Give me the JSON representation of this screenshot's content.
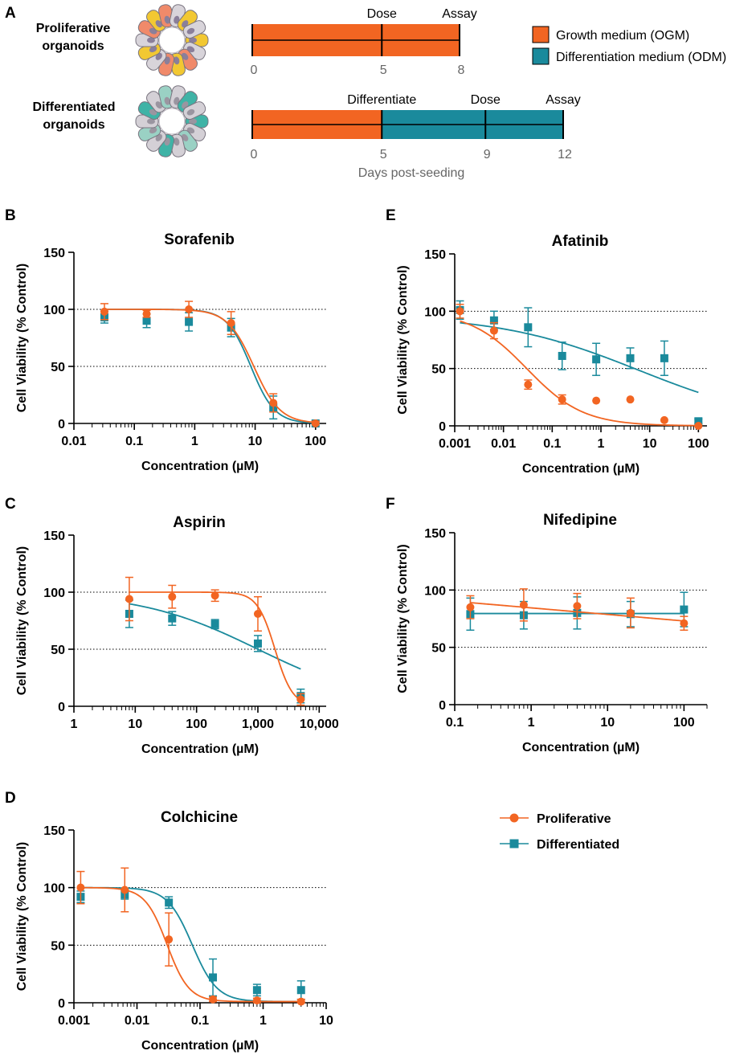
{
  "colors": {
    "proliferative": "#f26522",
    "differentiated": "#1a8a9c",
    "axis": "#000000",
    "timeline_text": "#666666"
  },
  "panel_a": {
    "letter": "A",
    "rows": [
      {
        "label_line1": "Proliferative",
        "label_line2": "organoids",
        "marker_labels": [
          "Dose",
          "Assay"
        ],
        "tick_labels": [
          "0",
          "5",
          "8"
        ],
        "segments": [
          {
            "medium": "OGM",
            "from_day": 0,
            "to_day": 8
          }
        ],
        "markers": [
          5,
          8
        ],
        "max_day": 8
      },
      {
        "label_line1": "Differentiated",
        "label_line2": "organoids",
        "marker_labels": [
          "Differentiate",
          "Dose",
          "Assay"
        ],
        "tick_labels": [
          "0",
          "5",
          "9",
          "12"
        ],
        "segments": [
          {
            "medium": "OGM",
            "from_day": 0,
            "to_day": 5
          },
          {
            "medium": "ODM",
            "from_day": 5,
            "to_day": 12
          }
        ],
        "markers": [
          5,
          9,
          12
        ],
        "max_day": 12
      }
    ],
    "axis_title": "Days post-seeding",
    "legend": [
      {
        "key": "OGM",
        "label": "Growth medium (OGM)"
      },
      {
        "key": "ODM",
        "label": "Differentiation medium (ODM)"
      }
    ]
  },
  "series_legend": {
    "proliferative": "Proliferative",
    "differentiated": "Differentiated"
  },
  "chart_data": [
    {
      "id": "B",
      "letter": "B",
      "type": "scatter",
      "title": "Sorafenib",
      "xlabel": "Concentration (µM)",
      "ylabel": "Cell Viability (% Control)",
      "xscale": "log",
      "xlim": [
        0.01,
        150
      ],
      "ylim": [
        0,
        150
      ],
      "xticks": [
        0.01,
        0.1,
        1,
        10,
        100
      ],
      "xtick_labels": [
        "0.01",
        "0.1",
        "1",
        "10",
        "100"
      ],
      "yticks": [
        0,
        50,
        100,
        150
      ],
      "ytick_labels": [
        "0",
        "50",
        "100",
        "150"
      ],
      "reference_lines": [
        50,
        100
      ],
      "series": [
        {
          "name": "Proliferative",
          "marker": "circle",
          "x": [
            0.032,
            0.16,
            0.8,
            4,
            20,
            100
          ],
          "y": [
            98,
            96,
            100,
            88,
            18,
            0
          ],
          "err": [
            7,
            3,
            7,
            10,
            8,
            2
          ],
          "fit": {
            "kind": "hill",
            "top": 100,
            "bottom": 0,
            "ic50": 9.5,
            "hill": 2.0,
            "from": 0.032,
            "to": 100
          }
        },
        {
          "name": "Differentiated",
          "marker": "square",
          "x": [
            0.032,
            0.16,
            0.8,
            4,
            20,
            100
          ],
          "y": [
            93,
            90,
            89,
            84,
            14,
            0
          ],
          "err": [
            5,
            6,
            8,
            8,
            10,
            2
          ],
          "fit": {
            "kind": "hill",
            "top": 100,
            "bottom": 0,
            "ic50": 8.5,
            "hill": 2.2,
            "from": 0.032,
            "to": 100
          }
        }
      ]
    },
    {
      "id": "C",
      "letter": "C",
      "type": "scatter",
      "title": "Aspirin",
      "xlabel": "Concentration (µM)",
      "ylabel": "Cell Viability (% Control)",
      "xscale": "log",
      "xlim": [
        1,
        13000
      ],
      "ylim": [
        0,
        150
      ],
      "xticks": [
        1,
        10,
        100,
        1000,
        10000
      ],
      "xtick_labels": [
        "1",
        "10",
        "100",
        "1,000",
        "10,000"
      ],
      "yticks": [
        0,
        50,
        100,
        150
      ],
      "ytick_labels": [
        "0",
        "50",
        "100",
        "150"
      ],
      "reference_lines": [
        50,
        100
      ],
      "series": [
        {
          "name": "Proliferative",
          "marker": "circle",
          "x": [
            8,
            40,
            200,
            1000,
            5000
          ],
          "y": [
            94,
            96,
            97,
            81,
            6
          ],
          "err": [
            19,
            10,
            5,
            15,
            5
          ],
          "fit": {
            "kind": "hill",
            "top": 100,
            "bottom": 0,
            "ic50": 1900,
            "hill": 3.0,
            "from": 8,
            "to": 5000
          }
        },
        {
          "name": "Differentiated",
          "marker": "square",
          "x": [
            8,
            40,
            200,
            1000,
            5000
          ],
          "y": [
            81,
            77,
            72,
            55,
            9
          ],
          "err": [
            12,
            6,
            4,
            7,
            6
          ],
          "fit": {
            "kind": "hill",
            "top": 100,
            "bottom": 0,
            "ic50": 1000,
            "hill": 0.45,
            "from": 8,
            "to": 5000
          }
        }
      ]
    },
    {
      "id": "D",
      "letter": "D",
      "type": "scatter",
      "title": "Colchicine",
      "xlabel": "Concentration (µM)",
      "ylabel": "Cell Viability (% Control)",
      "xscale": "log",
      "xlim": [
        0.001,
        10
      ],
      "ylim": [
        0,
        150
      ],
      "xticks": [
        0.001,
        0.01,
        0.1,
        1,
        10
      ],
      "xtick_labels": [
        "0.001",
        "0.01",
        "0.1",
        "1",
        "10"
      ],
      "yticks": [
        0,
        50,
        100,
        150
      ],
      "ytick_labels": [
        "0",
        "50",
        "100",
        "150"
      ],
      "reference_lines": [
        50,
        100
      ],
      "series": [
        {
          "name": "Proliferative",
          "marker": "circle",
          "x": [
            0.00128,
            0.0064,
            0.032,
            0.16,
            0.8,
            4
          ],
          "y": [
            100,
            98,
            55,
            3,
            2,
            1
          ],
          "err": [
            14,
            19,
            23,
            2,
            2,
            2
          ],
          "fit": {
            "kind": "hill",
            "top": 100,
            "bottom": 1,
            "ic50": 0.03,
            "hill": 2.5,
            "from": 0.00128,
            "to": 4
          }
        },
        {
          "name": "Differentiated",
          "marker": "square",
          "x": [
            0.00128,
            0.0064,
            0.032,
            0.16,
            0.8,
            4
          ],
          "y": [
            92,
            94,
            87,
            22,
            11,
            11
          ],
          "err": [
            5,
            4,
            5,
            16,
            5,
            8
          ],
          "fit": {
            "kind": "hill",
            "top": 100,
            "bottom": 1,
            "ic50": 0.075,
            "hill": 2.2,
            "from": 0.00128,
            "to": 4
          }
        }
      ]
    },
    {
      "id": "E",
      "letter": "E",
      "type": "scatter",
      "title": "Afatinib",
      "xlabel": "Concentration (µM)",
      "ylabel": "Cell Viability (% Control)",
      "xscale": "log",
      "xlim": [
        0.001,
        150
      ],
      "ylim": [
        0,
        150
      ],
      "xticks": [
        0.001,
        0.01,
        0.1,
        1,
        10,
        100
      ],
      "xtick_labels": [
        "0.001",
        "0.01",
        "0.1",
        "1",
        "10",
        "100"
      ],
      "yticks": [
        0,
        50,
        100,
        150
      ],
      "ytick_labels": [
        "0",
        "50",
        "100",
        "150"
      ],
      "reference_lines": [
        50,
        100
      ],
      "series": [
        {
          "name": "Proliferative",
          "marker": "circle",
          "x": [
            0.00128,
            0.0064,
            0.032,
            0.16,
            0.8,
            4,
            20,
            100
          ],
          "y": [
            100,
            83,
            36,
            23,
            22,
            23,
            5,
            0
          ],
          "err": [
            6,
            7,
            4,
            4,
            0,
            0,
            0,
            0
          ],
          "fit": {
            "kind": "hill",
            "top": 100,
            "bottom": 0,
            "ic50": 0.03,
            "hill": 0.75,
            "from": 0.00128,
            "to": 100
          }
        },
        {
          "name": "Differentiated",
          "marker": "square",
          "x": [
            0.00128,
            0.0064,
            0.032,
            0.16,
            0.8,
            4,
            20,
            100
          ],
          "y": [
            101,
            92,
            86,
            61,
            58,
            59,
            59,
            4
          ],
          "err": [
            8,
            8,
            17,
            12,
            14,
            9,
            15,
            2
          ],
          "fit": {
            "kind": "hill",
            "top": 97,
            "bottom": 0,
            "ic50": 6,
            "hill": 0.3,
            "from": 0.00128,
            "to": 100
          }
        }
      ]
    },
    {
      "id": "F",
      "letter": "F",
      "type": "scatter",
      "title": "Nifedipine",
      "xlabel": "Concentration (µM)",
      "ylabel": "Cell Viability (% Control)",
      "xscale": "log",
      "xlim": [
        0.1,
        200
      ],
      "ylim": [
        0,
        150
      ],
      "xticks": [
        0.1,
        1,
        10,
        100
      ],
      "xtick_labels": [
        "0.1",
        "1",
        "10",
        "100"
      ],
      "yticks": [
        0,
        50,
        100,
        150
      ],
      "ytick_labels": [
        "0",
        "50",
        "100",
        "150"
      ],
      "reference_lines": [
        50,
        100
      ],
      "series": [
        {
          "name": "Proliferative",
          "marker": "circle",
          "x": [
            0.16,
            0.8,
            4,
            20,
            100
          ],
          "y": [
            85,
            87,
            86,
            80,
            71
          ],
          "err": [
            10,
            14,
            11,
            13,
            6
          ],
          "fit": {
            "kind": "logline",
            "y_start": 89,
            "y_end": 73,
            "from": 0.16,
            "to": 100
          }
        },
        {
          "name": "Differentiated",
          "marker": "square",
          "x": [
            0.16,
            0.8,
            4,
            20,
            100
          ],
          "y": [
            79,
            78,
            80,
            79,
            83
          ],
          "err": [
            14,
            12,
            14,
            11,
            15
          ],
          "fit": {
            "kind": "logline",
            "y_start": 79.5,
            "y_end": 79.5,
            "from": 0.16,
            "to": 100
          }
        }
      ]
    }
  ]
}
